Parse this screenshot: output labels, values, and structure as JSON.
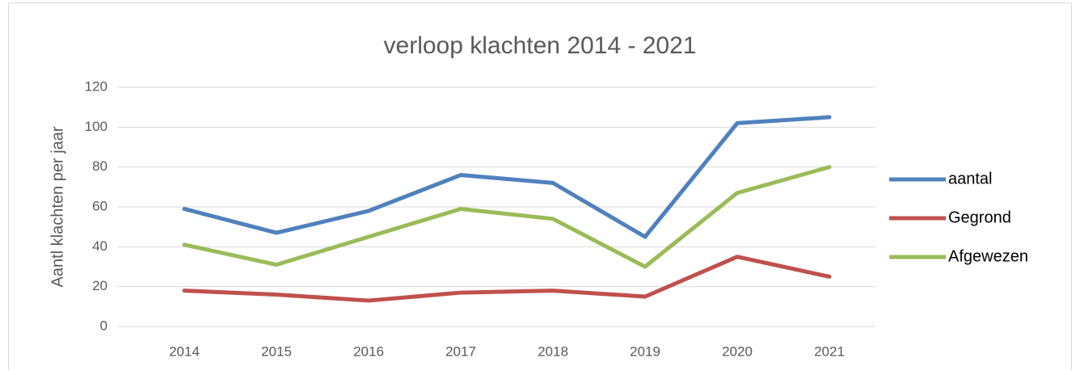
{
  "chart_data": {
    "type": "line",
    "title": "verloop klachten 2014 - 2021",
    "y_label": "Aantl klachten per jaar",
    "categories": [
      "2014",
      "2015",
      "2016",
      "2017",
      "2018",
      "2019",
      "2020",
      "2021"
    ],
    "series": [
      {
        "name": "aantal",
        "color": "#4f81bd",
        "values": [
          59,
          47,
          58,
          76,
          72,
          45,
          102,
          105
        ]
      },
      {
        "name": "Gegrond",
        "color": "#c0504d",
        "values": [
          18,
          16,
          13,
          17,
          18,
          15,
          35,
          25
        ]
      },
      {
        "name": "Afgewezen",
        "color": "#9bbb59",
        "values": [
          41,
          31,
          45,
          59,
          54,
          30,
          67,
          80
        ]
      }
    ],
    "ylim": [
      0,
      120
    ],
    "yticks": [
      0,
      20,
      40,
      60,
      80,
      100,
      120
    ],
    "grid": true,
    "legend": "right"
  }
}
